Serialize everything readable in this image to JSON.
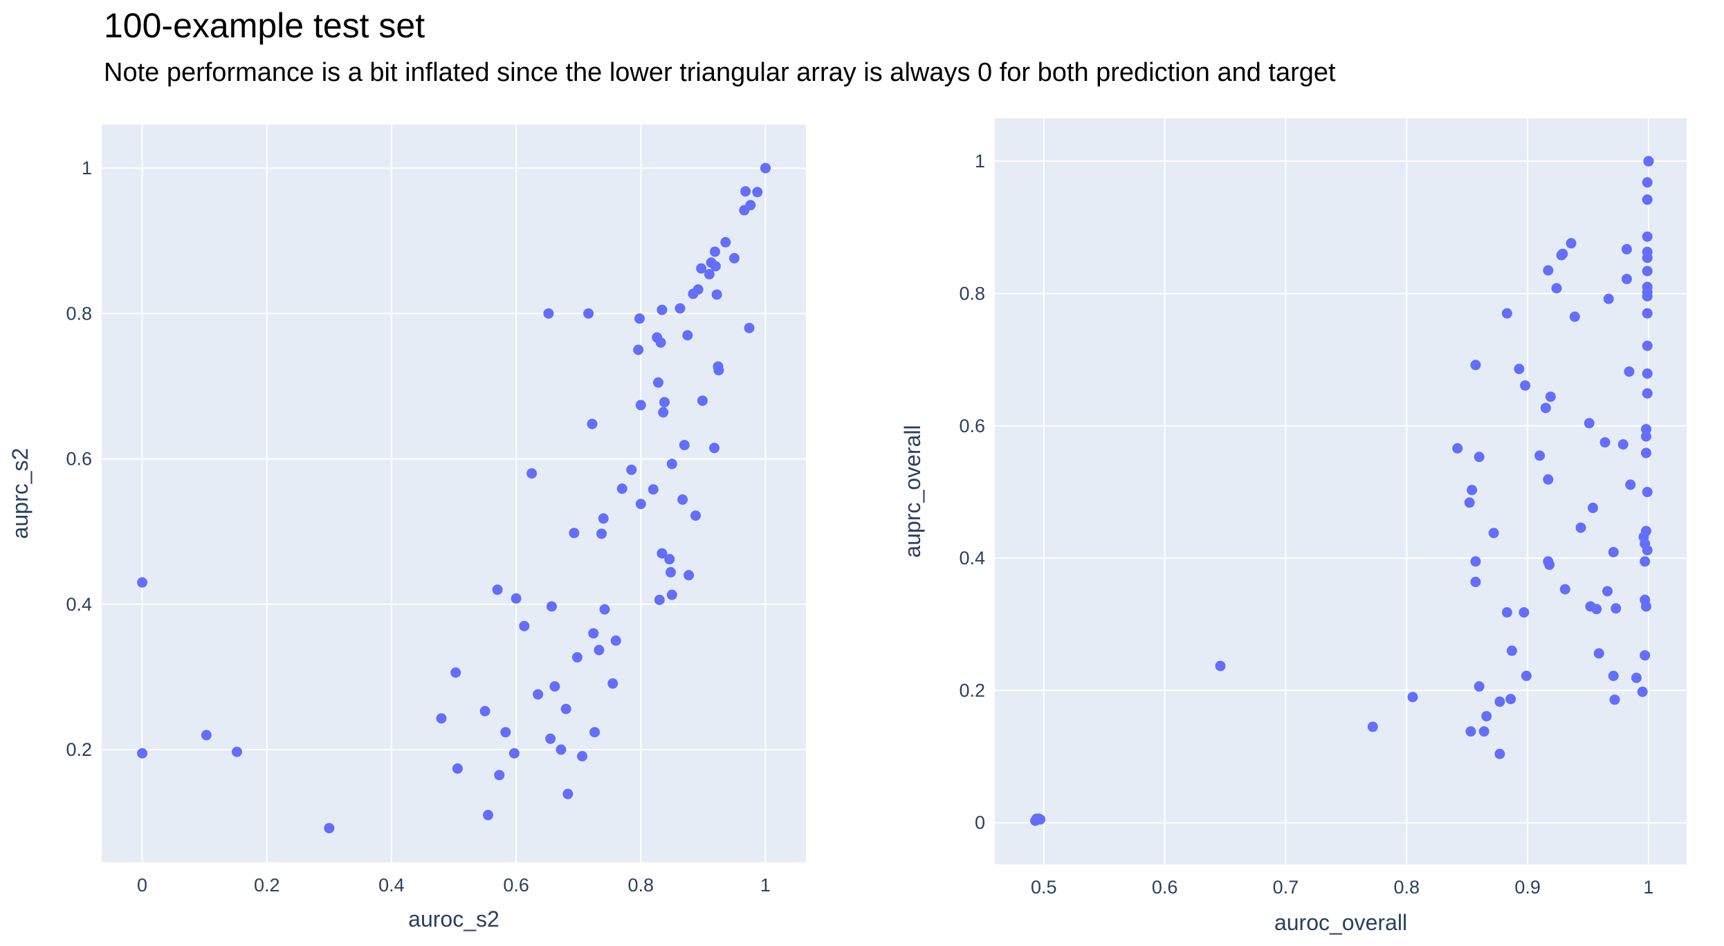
{
  "header": {
    "title": "100-example test set",
    "subtitle": "Note performance is a bit inflated since the lower triangular array is always 0 for both prediction and target"
  },
  "colors": {
    "plot_bg": "#e5ecf6",
    "grid": "#ffffff",
    "marker": "#636efa",
    "text": "#2a3f5f"
  },
  "chart_data": [
    {
      "type": "scatter",
      "xlabel": "auroc_s2",
      "ylabel": "auprc_s2",
      "xlim": [
        -0.065,
        1.065
      ],
      "ylim": [
        0.045,
        1.06
      ],
      "xticks": [
        0,
        0.2,
        0.4,
        0.6,
        0.8,
        1
      ],
      "xtick_labels": [
        "0",
        "0.2",
        "0.4",
        "0.6",
        "0.8",
        "1"
      ],
      "yticks": [
        0.2,
        0.4,
        0.6,
        0.8,
        1
      ],
      "ytick_labels": [
        "0.2",
        "0.4",
        "0.6",
        "0.8",
        "1"
      ],
      "grid": true,
      "points": [
        [
          0,
          0.43
        ],
        [
          0,
          0.195
        ],
        [
          0.103,
          0.22
        ],
        [
          0.152,
          0.197
        ],
        [
          0.3,
          0.092
        ],
        [
          0.48,
          0.243
        ],
        [
          0.503,
          0.306
        ],
        [
          0.506,
          0.174
        ],
        [
          0.55,
          0.253
        ],
        [
          0.555,
          0.11
        ],
        [
          0.57,
          0.42
        ],
        [
          0.573,
          0.165
        ],
        [
          0.583,
          0.224
        ],
        [
          0.597,
          0.195
        ],
        [
          0.6,
          0.408
        ],
        [
          0.613,
          0.37
        ],
        [
          0.625,
          0.58
        ],
        [
          0.635,
          0.276
        ],
        [
          0.652,
          0.8
        ],
        [
          0.655,
          0.215
        ],
        [
          0.657,
          0.397
        ],
        [
          0.662,
          0.287
        ],
        [
          0.672,
          0.2
        ],
        [
          0.68,
          0.256
        ],
        [
          0.683,
          0.139
        ],
        [
          0.693,
          0.498
        ],
        [
          0.698,
          0.327
        ],
        [
          0.706,
          0.191
        ],
        [
          0.716,
          0.8
        ],
        [
          0.722,
          0.648
        ],
        [
          0.724,
          0.36
        ],
        [
          0.726,
          0.224
        ],
        [
          0.733,
          0.337
        ],
        [
          0.737,
          0.497
        ],
        [
          0.74,
          0.518
        ],
        [
          0.742,
          0.393
        ],
        [
          0.755,
          0.291
        ],
        [
          0.76,
          0.35
        ],
        [
          0.77,
          0.559
        ],
        [
          0.785,
          0.585
        ],
        [
          0.796,
          0.75
        ],
        [
          0.798,
          0.793
        ],
        [
          0.8,
          0.674
        ],
        [
          0.8,
          0.538
        ],
        [
          0.82,
          0.558
        ],
        [
          0.826,
          0.767
        ],
        [
          0.828,
          0.705
        ],
        [
          0.83,
          0.406
        ],
        [
          0.832,
          0.76
        ],
        [
          0.834,
          0.805
        ],
        [
          0.834,
          0.47
        ],
        [
          0.836,
          0.664
        ],
        [
          0.838,
          0.678
        ],
        [
          0.846,
          0.462
        ],
        [
          0.848,
          0.444
        ],
        [
          0.85,
          0.413
        ],
        [
          0.85,
          0.593
        ],
        [
          0.863,
          0.807
        ],
        [
          0.867,
          0.544
        ],
        [
          0.87,
          0.619
        ],
        [
          0.875,
          0.77
        ],
        [
          0.877,
          0.44
        ],
        [
          0.884,
          0.827
        ],
        [
          0.888,
          0.522
        ],
        [
          0.892,
          0.833
        ],
        [
          0.897,
          0.862
        ],
        [
          0.899,
          0.68
        ],
        [
          0.91,
          0.854
        ],
        [
          0.913,
          0.87
        ],
        [
          0.918,
          0.615
        ],
        [
          0.919,
          0.885
        ],
        [
          0.92,
          0.865
        ],
        [
          0.922,
          0.826
        ],
        [
          0.924,
          0.727
        ],
        [
          0.925,
          0.722
        ],
        [
          0.936,
          0.898
        ],
        [
          0.95,
          0.876
        ],
        [
          0.966,
          0.942
        ],
        [
          0.968,
          0.968
        ],
        [
          0.974,
          0.78
        ],
        [
          0.976,
          0.949
        ],
        [
          0.987,
          0.967
        ],
        [
          1,
          1
        ],
        [
          1,
          1
        ]
      ]
    },
    {
      "type": "scatter",
      "xlabel": "auroc_overall",
      "ylabel": "auprc_overall",
      "xlim": [
        0.4595,
        1.0315
      ],
      "ylim": [
        -0.063,
        1.065
      ],
      "xticks": [
        0.5,
        0.6,
        0.7,
        0.8,
        0.9,
        1
      ],
      "xtick_labels": [
        "0.5",
        "0.6",
        "0.7",
        "0.8",
        "0.9",
        "1"
      ],
      "yticks": [
        0,
        0.2,
        0.4,
        0.6,
        0.8,
        1
      ],
      "ytick_labels": [
        "0",
        "0.2",
        "0.4",
        "0.6",
        "0.8",
        "1"
      ],
      "grid": true,
      "points": [
        [
          0.493,
          0.003
        ],
        [
          0.494,
          0.006
        ],
        [
          0.496,
          0.006
        ],
        [
          0.497,
          0.005
        ],
        [
          0.646,
          0.237
        ],
        [
          0.772,
          0.145
        ],
        [
          0.805,
          0.19
        ],
        [
          0.842,
          0.566
        ],
        [
          0.852,
          0.484
        ],
        [
          0.853,
          0.138
        ],
        [
          0.854,
          0.503
        ],
        [
          0.857,
          0.692
        ],
        [
          0.857,
          0.395
        ],
        [
          0.857,
          0.364
        ],
        [
          0.86,
          0.553
        ],
        [
          0.86,
          0.206
        ],
        [
          0.864,
          0.138
        ],
        [
          0.866,
          0.161
        ],
        [
          0.872,
          0.438
        ],
        [
          0.877,
          0.104
        ],
        [
          0.877,
          0.183
        ],
        [
          0.883,
          0.318
        ],
        [
          0.883,
          0.77
        ],
        [
          0.886,
          0.187
        ],
        [
          0.887,
          0.26
        ],
        [
          0.893,
          0.686
        ],
        [
          0.897,
          0.318
        ],
        [
          0.898,
          0.661
        ],
        [
          0.899,
          0.222
        ],
        [
          0.91,
          0.555
        ],
        [
          0.915,
          0.627
        ],
        [
          0.917,
          0.519
        ],
        [
          0.917,
          0.395
        ],
        [
          0.917,
          0.835
        ],
        [
          0.918,
          0.39
        ],
        [
          0.919,
          0.644
        ],
        [
          0.924,
          0.808
        ],
        [
          0.928,
          0.858
        ],
        [
          0.929,
          0.86
        ],
        [
          0.931,
          0.353
        ],
        [
          0.936,
          0.876
        ],
        [
          0.939,
          0.765
        ],
        [
          0.944,
          0.446
        ],
        [
          0.951,
          0.604
        ],
        [
          0.952,
          0.327
        ],
        [
          0.954,
          0.476
        ],
        [
          0.957,
          0.323
        ],
        [
          0.959,
          0.256
        ],
        [
          0.964,
          0.575
        ],
        [
          0.966,
          0.35
        ],
        [
          0.967,
          0.792
        ],
        [
          0.971,
          0.409
        ],
        [
          0.971,
          0.222
        ],
        [
          0.972,
          0.186
        ],
        [
          0.973,
          0.324
        ],
        [
          0.979,
          0.572
        ],
        [
          0.982,
          0.867
        ],
        [
          0.982,
          0.822
        ],
        [
          0.984,
          0.682
        ],
        [
          0.985,
          0.511
        ],
        [
          0.99,
          0.219
        ],
        [
          0.995,
          0.198
        ],
        [
          0.996,
          0.432
        ],
        [
          0.997,
          0.253
        ],
        [
          0.997,
          0.337
        ],
        [
          0.997,
          0.395
        ],
        [
          0.997,
          0.422
        ],
        [
          0.998,
          0.584
        ],
        [
          0.998,
          0.559
        ],
        [
          0.998,
          0.327
        ],
        [
          0.998,
          0.441
        ],
        [
          0.998,
          0.595
        ],
        [
          0.999,
          0.412
        ],
        [
          0.999,
          0.5
        ],
        [
          0.999,
          0.649
        ],
        [
          0.999,
          0.679
        ],
        [
          0.999,
          0.721
        ],
        [
          0.999,
          0.77
        ],
        [
          0.999,
          0.796
        ],
        [
          0.999,
          0.802
        ],
        [
          0.999,
          0.81
        ],
        [
          0.999,
          0.834
        ],
        [
          0.999,
          0.854
        ],
        [
          0.999,
          0.863
        ],
        [
          0.999,
          0.886
        ],
        [
          0.999,
          0.942
        ],
        [
          0.999,
          0.968
        ],
        [
          1,
          1
        ],
        [
          1,
          1
        ],
        [
          1,
          1
        ]
      ]
    }
  ]
}
